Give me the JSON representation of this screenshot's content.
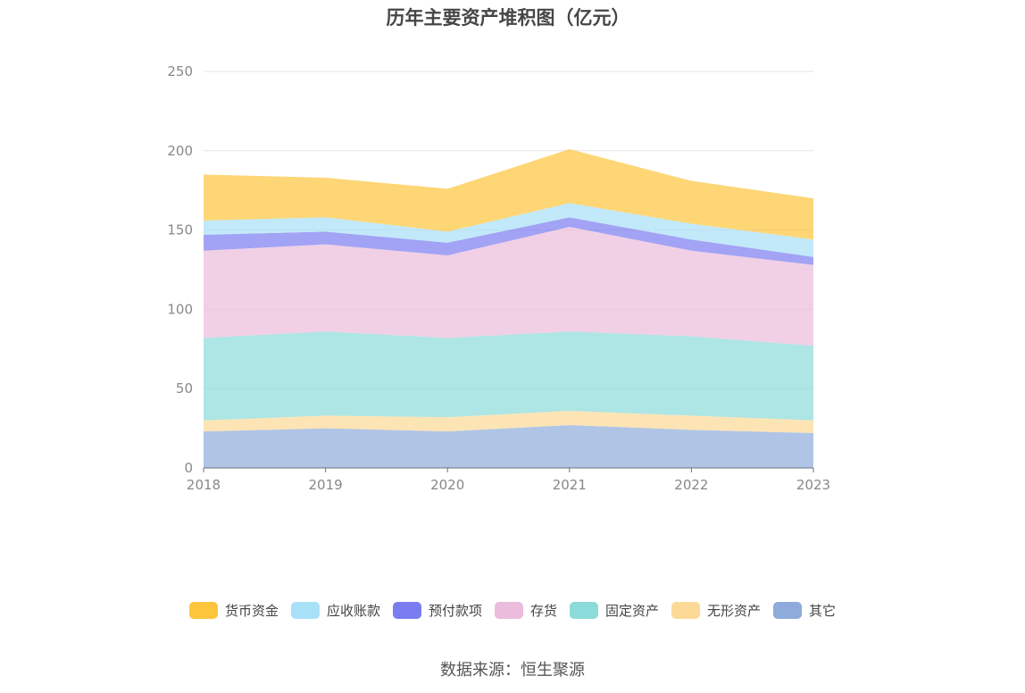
{
  "title": "历年主要资产堆积图（亿元）",
  "source": "数据来源：恒生聚源",
  "chart_data": {
    "type": "area",
    "stacked": true,
    "title": "历年主要资产堆积图（亿元）",
    "x": [
      "2018",
      "2019",
      "2020",
      "2021",
      "2022",
      "2023"
    ],
    "ylim": [
      0,
      250
    ],
    "yticks": [
      0,
      50,
      100,
      150,
      200,
      250
    ],
    "grid": true,
    "legend_position": "bottom",
    "series": [
      {
        "name": "其它",
        "color": "#8fabdc",
        "values": [
          23,
          25,
          23,
          27,
          24,
          22
        ]
      },
      {
        "name": "无形资产",
        "color": "#fcd996",
        "values": [
          7,
          8,
          9,
          9,
          9,
          8
        ]
      },
      {
        "name": "固定资产",
        "color": "#8adbd9",
        "values": [
          52,
          53,
          50,
          50,
          50,
          47
        ]
      },
      {
        "name": "存货",
        "color": "#ebbcdc",
        "values": [
          55,
          55,
          52,
          66,
          54,
          51
        ]
      },
      {
        "name": "预付款项",
        "color": "#7a7cf0",
        "values": [
          10,
          8,
          8,
          6,
          7,
          5
        ]
      },
      {
        "name": "应收账款",
        "color": "#a8e0f8",
        "values": [
          9,
          9,
          7,
          9,
          10,
          11
        ]
      },
      {
        "name": "货币资金",
        "color": "#fdc53c",
        "values": [
          29,
          25,
          27,
          34,
          27,
          26
        ]
      }
    ]
  }
}
